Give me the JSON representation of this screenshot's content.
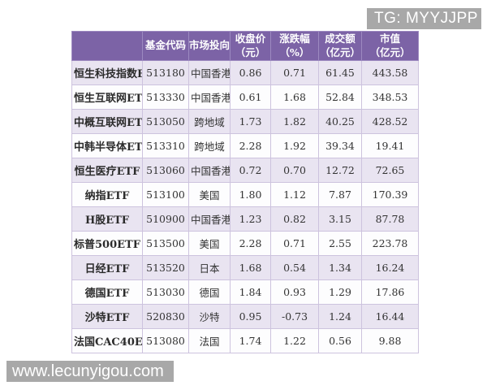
{
  "badge": {
    "text": "TG: MYYJJPP"
  },
  "watermark": {
    "text": "www.lecunyigou.com"
  },
  "table": {
    "columns": [
      {
        "label": "",
        "unit": "",
        "key": "etf-name"
      },
      {
        "label": "基金代码",
        "unit": "",
        "key": "fund-code"
      },
      {
        "label": "市场投向",
        "unit": "",
        "key": "market"
      },
      {
        "label": "收盘价",
        "unit": "（元）",
        "key": "close-price"
      },
      {
        "label": "涨跌幅",
        "unit": "（%）",
        "key": "change-pct"
      },
      {
        "label": "成交额",
        "unit": "（亿元）",
        "key": "turnover"
      },
      {
        "label": "市值",
        "unit": "（亿元）",
        "key": "market-cap"
      }
    ],
    "rows": [
      [
        "恒生科技指数ETF",
        "513180",
        "中国香港",
        "0.86",
        "0.71",
        "61.45",
        "443.58"
      ],
      [
        "恒生互联网ETF",
        "513330",
        "中国香港",
        "0.61",
        "1.68",
        "52.84",
        "348.53"
      ],
      [
        "中概互联网ETF",
        "513050",
        "跨地域",
        "1.73",
        "1.82",
        "40.25",
        "428.52"
      ],
      [
        "中韩半导体ETF",
        "513310",
        "跨地域",
        "2.28",
        "1.92",
        "39.34",
        "19.41"
      ],
      [
        "恒生医疗ETF",
        "513060",
        "中国香港",
        "0.72",
        "0.70",
        "12.72",
        "72.65"
      ],
      [
        "纳指ETF",
        "513100",
        "美国",
        "1.80",
        "1.12",
        "7.87",
        "170.39"
      ],
      [
        "H股ETF",
        "510900",
        "中国香港",
        "1.23",
        "0.82",
        "3.15",
        "87.78"
      ],
      [
        "标普500ETF",
        "513500",
        "美国",
        "2.28",
        "0.71",
        "2.55",
        "223.78"
      ],
      [
        "日经ETF",
        "513520",
        "日本",
        "1.68",
        "0.54",
        "1.34",
        "16.24"
      ],
      [
        "德国ETF",
        "513030",
        "德国",
        "1.84",
        "0.93",
        "1.29",
        "17.86"
      ],
      [
        "沙特ETF",
        "520830",
        "沙特",
        "0.95",
        "-0.73",
        "1.24",
        "16.44"
      ],
      [
        "法国CAC40ETF",
        "513080",
        "法国",
        "1.74",
        "1.22",
        "0.56",
        "9.88"
      ]
    ]
  },
  "colors": {
    "header_bg": "#7c63a6",
    "header_border": "#9c89c0",
    "row_alt_bg": "#e9e4f1",
    "row_bg": "#fdfdfe",
    "cell_border": "#cdc3de",
    "badge_bg": "#a8a8a8",
    "text": "#333333"
  }
}
